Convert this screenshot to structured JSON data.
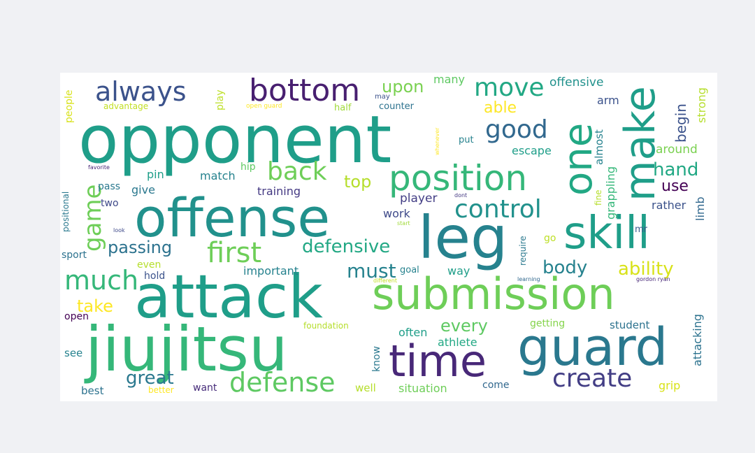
{
  "words": [
    {
      "text": "opponent",
      "color": "#1f9e89"
    },
    {
      "text": "attack",
      "color": "#1f9e89"
    },
    {
      "text": "jiujitsu",
      "color": "#35b779"
    },
    {
      "text": "offense",
      "color": "#21918c"
    },
    {
      "text": "submission",
      "color": "#6ece58"
    },
    {
      "text": "guard",
      "color": "#2a788e"
    },
    {
      "text": "leg",
      "color": "#26828e"
    },
    {
      "text": "skill",
      "color": "#1f9e89"
    },
    {
      "text": "make",
      "color": "#1f9e89"
    },
    {
      "text": "one",
      "color": "#22a884"
    },
    {
      "text": "time",
      "color": "#482878"
    },
    {
      "text": "position",
      "color": "#35b779"
    },
    {
      "text": "bottom",
      "color": "#481f70"
    },
    {
      "text": "always",
      "color": "#3b528b"
    },
    {
      "text": "defense",
      "color": "#5ec962"
    },
    {
      "text": "create",
      "color": "#433e85"
    },
    {
      "text": "control",
      "color": "#21918c"
    },
    {
      "text": "move",
      "color": "#22a884"
    },
    {
      "text": "first",
      "color": "#6ece58"
    },
    {
      "text": "back",
      "color": "#6ece58"
    },
    {
      "text": "good",
      "color": "#31688e"
    },
    {
      "text": "much",
      "color": "#35b779"
    },
    {
      "text": "game",
      "color": "#6ece58"
    },
    {
      "text": "great",
      "color": "#2a788e"
    },
    {
      "text": "defensive",
      "color": "#22a884"
    },
    {
      "text": "passing",
      "color": "#2c728e"
    },
    {
      "text": "must",
      "color": "#26828e"
    },
    {
      "text": "body",
      "color": "#26828e"
    },
    {
      "text": "ability",
      "color": "#d8e219"
    },
    {
      "text": "hand",
      "color": "#22a884"
    },
    {
      "text": "every",
      "color": "#5ec962"
    },
    {
      "text": "top",
      "color": "#b5de2b"
    },
    {
      "text": "take",
      "color": "#fde725"
    },
    {
      "text": "upon",
      "color": "#7ad151"
    },
    {
      "text": "able",
      "color": "#fde725"
    },
    {
      "text": "use",
      "color": "#440154"
    },
    {
      "text": "begin",
      "color": "#3b528b"
    },
    {
      "text": "offensive",
      "color": "#21918c"
    },
    {
      "text": "many",
      "color": "#5ec962"
    },
    {
      "text": "arm",
      "color": "#3b528b"
    },
    {
      "text": "around",
      "color": "#7ad151"
    },
    {
      "text": "escape",
      "color": "#1f9e89"
    },
    {
      "text": "almost",
      "color": "#26828e"
    },
    {
      "text": "grappling",
      "color": "#35b779"
    },
    {
      "text": "rather",
      "color": "#3b528b"
    },
    {
      "text": "limb",
      "color": "#31688e"
    },
    {
      "text": "strong",
      "color": "#b5de2b"
    },
    {
      "text": "player",
      "color": "#433e85"
    },
    {
      "text": "work",
      "color": "#3e4989"
    },
    {
      "text": "training",
      "color": "#443983"
    },
    {
      "text": "match",
      "color": "#26828e"
    },
    {
      "text": "pin",
      "color": "#1f9e89"
    },
    {
      "text": "give",
      "color": "#2a788e"
    },
    {
      "text": "pass",
      "color": "#2a788e"
    },
    {
      "text": "two",
      "color": "#3e4989"
    },
    {
      "text": "hip",
      "color": "#5ec962"
    },
    {
      "text": "play",
      "color": "#bddf26"
    },
    {
      "text": "people",
      "color": "#d8e219"
    },
    {
      "text": "advantage",
      "color": "#c2df23"
    },
    {
      "text": "open guard",
      "color": "#fde725"
    },
    {
      "text": "half",
      "color": "#a0da39"
    },
    {
      "text": "may",
      "color": "#3b528b"
    },
    {
      "text": "counter",
      "color": "#2c728e"
    },
    {
      "text": "put",
      "color": "#26828e"
    },
    {
      "text": "whenever",
      "color": "#fde725"
    },
    {
      "text": "favorite",
      "color": "#482475"
    },
    {
      "text": "positional",
      "color": "#2a788e"
    },
    {
      "text": "look",
      "color": "#3e4989"
    },
    {
      "text": "sport",
      "color": "#2c728e"
    },
    {
      "text": "even",
      "color": "#b5de2b"
    },
    {
      "text": "important",
      "color": "#26828e"
    },
    {
      "text": "hold",
      "color": "#3b528b"
    },
    {
      "text": "goal",
      "color": "#26828e"
    },
    {
      "text": "way",
      "color": "#1f9e89"
    },
    {
      "text": "different",
      "color": "#c2df23"
    },
    {
      "text": "learning",
      "color": "#31688e"
    },
    {
      "text": "gordon ryan",
      "color": "#482878"
    },
    {
      "text": "mr",
      "color": "#38598c"
    },
    {
      "text": "go",
      "color": "#bddf26"
    },
    {
      "text": "require",
      "color": "#2a788e"
    },
    {
      "text": "fine",
      "color": "#b5de2b"
    },
    {
      "text": "dont",
      "color": "#443983"
    },
    {
      "text": "start",
      "color": "#a0da39"
    },
    {
      "text": "open",
      "color": "#440154"
    },
    {
      "text": "foundation",
      "color": "#b5de2b"
    },
    {
      "text": "often",
      "color": "#1f9e89"
    },
    {
      "text": "know",
      "color": "#2a788e"
    },
    {
      "text": "athlete",
      "color": "#22a884"
    },
    {
      "text": "getting",
      "color": "#84d44b"
    },
    {
      "text": "student",
      "color": "#2c728e"
    },
    {
      "text": "attacking",
      "color": "#2c728e"
    },
    {
      "text": "see",
      "color": "#26828e"
    },
    {
      "text": "best",
      "color": "#2c728e"
    },
    {
      "text": "better",
      "color": "#fde725"
    },
    {
      "text": "want",
      "color": "#472c7a"
    },
    {
      "text": "well",
      "color": "#b5de2b"
    },
    {
      "text": "situation",
      "color": "#6ece58"
    },
    {
      "text": "come",
      "color": "#31688e"
    },
    {
      "text": "grip",
      "color": "#d8e219"
    }
  ]
}
